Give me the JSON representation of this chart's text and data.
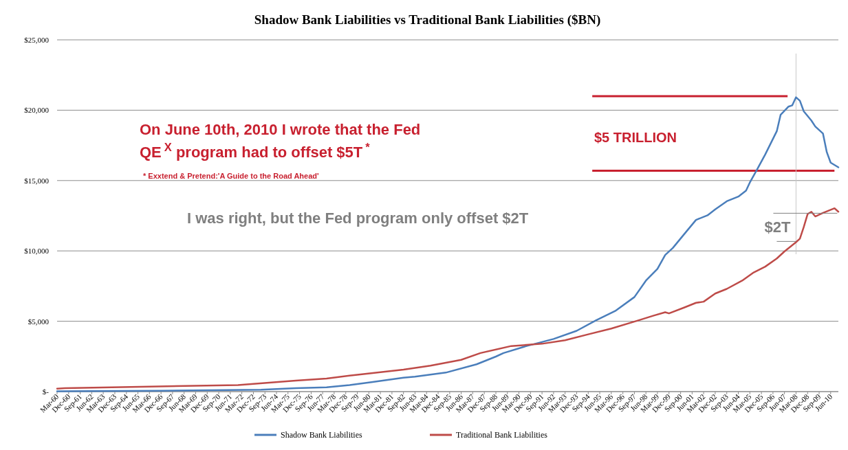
{
  "chart_data": {
    "type": "line",
    "title": "Shadow Bank Liabilities vs Traditional Bank Liabilities ($BN)",
    "xlim": [
      "1960-03",
      "2010-12"
    ],
    "xticks": [
      {
        "value": "1960-03",
        "label": "Mar-60"
      },
      {
        "value": "1960-12",
        "label": "Dec-60"
      },
      {
        "value": "1961-09",
        "label": "Sep-61"
      },
      {
        "value": "1962-06",
        "label": "Jun-62"
      },
      {
        "value": "1963-03",
        "label": "Mar-63"
      },
      {
        "value": "1963-12",
        "label": "Dec-63"
      },
      {
        "value": "1964-09",
        "label": "Sep-64"
      },
      {
        "value": "1965-06",
        "label": "Jun-65"
      },
      {
        "value": "1966-03",
        "label": "Mar-66"
      },
      {
        "value": "1966-12",
        "label": "Dec-66"
      },
      {
        "value": "1967-09",
        "label": "Sep-67"
      },
      {
        "value": "1968-06",
        "label": "Jun-68"
      },
      {
        "value": "1969-03",
        "label": "Mar-69"
      },
      {
        "value": "1969-12",
        "label": "Dec-69"
      },
      {
        "value": "1970-09",
        "label": "Sep-70"
      },
      {
        "value": "1971-06",
        "label": "Jun-71"
      },
      {
        "value": "1972-03",
        "label": "Mar-72"
      },
      {
        "value": "1972-12",
        "label": "Dec-72"
      },
      {
        "value": "1973-09",
        "label": "Sep-73"
      },
      {
        "value": "1974-06",
        "label": "Jun-74"
      },
      {
        "value": "1975-03",
        "label": "Mar-75"
      },
      {
        "value": "1975-12",
        "label": "Dec-75"
      },
      {
        "value": "1976-09",
        "label": "Sep-76"
      },
      {
        "value": "1977-06",
        "label": "Jun-77"
      },
      {
        "value": "1978-03",
        "label": "Mar-78"
      },
      {
        "value": "1978-12",
        "label": "Dec-78"
      },
      {
        "value": "1979-09",
        "label": "Sep-79"
      },
      {
        "value": "1980-06",
        "label": "Jun-80"
      },
      {
        "value": "1981-03",
        "label": "Mar-81"
      },
      {
        "value": "1981-12",
        "label": "Dec-81"
      },
      {
        "value": "1982-09",
        "label": "Sep-82"
      },
      {
        "value": "1983-06",
        "label": "Jun-83"
      },
      {
        "value": "1984-03",
        "label": "Mar-84"
      },
      {
        "value": "1984-12",
        "label": "Dec-84"
      },
      {
        "value": "1985-09",
        "label": "Sep-85"
      },
      {
        "value": "1986-06",
        "label": "Jun-86"
      },
      {
        "value": "1987-03",
        "label": "Mar-87"
      },
      {
        "value": "1987-12",
        "label": "Dec-87"
      },
      {
        "value": "1988-09",
        "label": "Sep-88"
      },
      {
        "value": "1989-06",
        "label": "Jun-89"
      },
      {
        "value": "1990-03",
        "label": "Mar-90"
      },
      {
        "value": "1990-12",
        "label": "Dec-90"
      },
      {
        "value": "1991-09",
        "label": "Sep-91"
      },
      {
        "value": "1992-06",
        "label": "Jun-92"
      },
      {
        "value": "1993-03",
        "label": "Mar-93"
      },
      {
        "value": "1993-12",
        "label": "Dec-93"
      },
      {
        "value": "1994-09",
        "label": "Sep-94"
      },
      {
        "value": "1995-06",
        "label": "Jun-95"
      },
      {
        "value": "1996-03",
        "label": "Mar-96"
      },
      {
        "value": "1996-12",
        "label": "Dec-96"
      },
      {
        "value": "1997-09",
        "label": "Sep-97"
      },
      {
        "value": "1998-06",
        "label": "Jun-98"
      },
      {
        "value": "1999-03",
        "label": "Mar-99"
      },
      {
        "value": "1999-12",
        "label": "Dec-99"
      },
      {
        "value": "2000-09",
        "label": "Sep-00"
      },
      {
        "value": "2001-06",
        "label": "Jun-01"
      },
      {
        "value": "2002-03",
        "label": "Mar-02"
      },
      {
        "value": "2002-12",
        "label": "Dec-02"
      },
      {
        "value": "2003-09",
        "label": "Sep-03"
      },
      {
        "value": "2004-06",
        "label": "Jun-04"
      },
      {
        "value": "2005-03",
        "label": "Mar-05"
      },
      {
        "value": "2005-12",
        "label": "Dec-05"
      },
      {
        "value": "2006-09",
        "label": "Sep-06"
      },
      {
        "value": "2007-06",
        "label": "Jun-07"
      },
      {
        "value": "2008-03",
        "label": "Mar-08"
      },
      {
        "value": "2008-12",
        "label": "Dec-08"
      },
      {
        "value": "2009-09",
        "label": "Sep-09"
      },
      {
        "value": "2010-06",
        "label": "Jun-10"
      }
    ],
    "ylim": [
      0,
      25000
    ],
    "yticks": [
      {
        "value": 0,
        "label": "$-"
      },
      {
        "value": 5000,
        "label": "$5,000"
      },
      {
        "value": 10000,
        "label": "$10,000"
      },
      {
        "value": 15000,
        "label": "$15,000"
      },
      {
        "value": 20000,
        "label": "$20,000"
      },
      {
        "value": 25000,
        "label": "$25,000"
      }
    ],
    "grid": "y",
    "legend": "bottom",
    "line_style": "solid",
    "series": [
      {
        "name": "Shadow Bank Liabilities",
        "color": "#4a7ebb",
        "x": [
          "1960-03",
          "1966-12",
          "1973-06",
          "1975-09",
          "1977-09",
          "1979-03",
          "1980-09",
          "1982-09",
          "1983-06",
          "1985-06",
          "1987-06",
          "1988-09",
          "1989-03",
          "1990-09",
          "1992-06",
          "1993-12",
          "1995-03",
          "1996-06",
          "1997-09",
          "1998-06",
          "1999-03",
          "1999-09",
          "2000-03",
          "2000-12",
          "2001-09",
          "2002-06",
          "2002-12",
          "2003-09",
          "2004-06",
          "2004-12",
          "2005-03",
          "2005-09",
          "2006-03",
          "2006-12",
          "2007-03",
          "2007-09",
          "2007-12",
          "2008-03",
          "2008-06",
          "2008-09",
          "2009-03",
          "2009-06",
          "2009-12",
          "2010-03",
          "2010-06",
          "2010-12"
        ],
        "values": [
          20,
          60,
          130,
          250,
          300,
          460,
          680,
          990,
          1060,
          1350,
          1940,
          2490,
          2740,
          3240,
          3740,
          4320,
          5060,
          5730,
          6720,
          7890,
          8720,
          9710,
          10210,
          11210,
          12200,
          12530,
          12950,
          13530,
          13860,
          14280,
          14860,
          15850,
          16850,
          18510,
          19670,
          20250,
          20340,
          20920,
          20670,
          19920,
          19260,
          18840,
          18340,
          17020,
          16270,
          15940
        ]
      },
      {
        "name": "Traditional Bank Liabilities",
        "color": "#be4b48",
        "x": [
          "1960-03",
          "1960-09",
          "1966-03",
          "1971-12",
          "1975-09",
          "1977-09",
          "1979-09",
          "1982-09",
          "1984-06",
          "1986-06",
          "1987-09",
          "1989-09",
          "1991-09",
          "1993-03",
          "1994-09",
          "1996-03",
          "1997-12",
          "1998-12",
          "1999-09",
          "1999-12",
          "2000-12",
          "2001-09",
          "2002-03",
          "2002-12",
          "2003-09",
          "2004-09",
          "2005-06",
          "2006-03",
          "2006-12",
          "2007-06",
          "2008-03",
          "2008-06",
          "2008-09",
          "2008-12",
          "2009-03",
          "2009-06",
          "2009-12",
          "2010-09",
          "2010-12"
        ],
        "values": [
          210,
          250,
          360,
          460,
          780,
          930,
          1200,
          1560,
          1840,
          2260,
          2740,
          3240,
          3400,
          3650,
          4070,
          4480,
          5060,
          5400,
          5640,
          5560,
          5980,
          6310,
          6390,
          6970,
          7300,
          7890,
          8470,
          8880,
          9460,
          9960,
          10620,
          10870,
          11700,
          12620,
          12780,
          12450,
          12700,
          13030,
          12780
        ]
      }
    ],
    "ref_lines": [
      {
        "axis": "y",
        "value": 21000,
        "color": "#c8202f"
      },
      {
        "axis": "y",
        "value": 15700,
        "color": "#c8202f"
      },
      {
        "axis": "x",
        "value": "2008-03",
        "color": "#c8c8c8"
      }
    ],
    "annotations": [
      "On June 10th, 2010 I wrote that the Fed",
      "QE$^{X}$ program had to offset $5T$^{*}$",
      "* Exxtend & Pretend:'A Guide to the Road Ahead'",
      "I was right, but the Fed program only offset $2T",
      "$5 TRILLION",
      {
        "text": "$2T",
        "x": "2008-03",
        "y": 11700
      }
    ]
  }
}
